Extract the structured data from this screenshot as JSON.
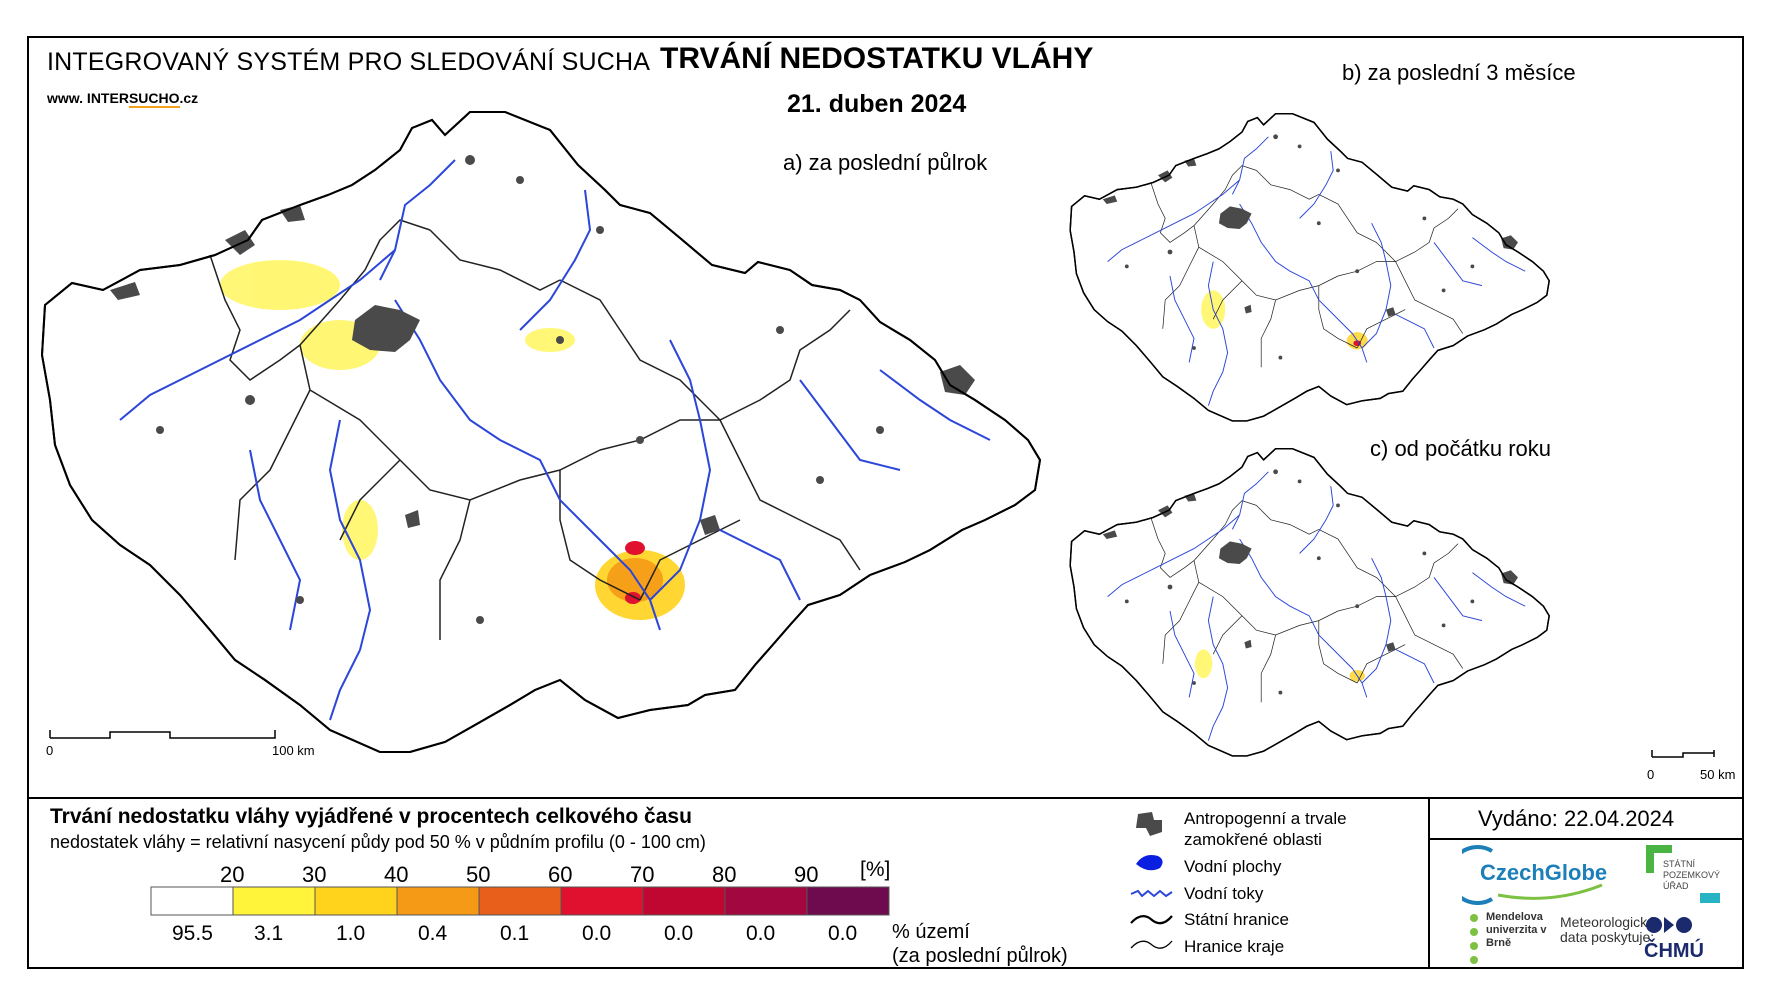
{
  "header": {
    "system_name": "INTEGROVANÝ SYSTÉM PRO SLEDOVÁNÍ SUCHA",
    "website_prefix": "www. INTER",
    "website_accent": "SUCHO",
    "website_suffix": ".cz",
    "title": "TRVÁNÍ NEDOSTATKU VLÁHY",
    "date": "21. duben 2024"
  },
  "maps": {
    "a_label": "a) za poslední půlrok",
    "b_label": "b) za poslední 3 měsíce",
    "c_label": "c) od počátku roku",
    "scale_main": {
      "start": "0",
      "end": "100 km"
    },
    "scale_small": {
      "start": "0",
      "end": "50 km"
    }
  },
  "legend": {
    "title": "Trvání nedostatku vláhy vyjádřené v procentech celkového času",
    "subtitle": "nedostatek vláhy = relativní nasycení půdy pod 50 % v půdním profilu (0 - 100 cm)",
    "thresholds": [
      "20",
      "30",
      "40",
      "50",
      "60",
      "70",
      "80",
      "90"
    ],
    "unit": "[%]",
    "colors": [
      "#ffffff",
      "#fff43a",
      "#ffd21c",
      "#f59a16",
      "#e85f1c",
      "#e0102f",
      "#bf0732",
      "#a3073f",
      "#6e0a4e"
    ],
    "percentages": [
      "95.5",
      "3.1",
      "1.0",
      "0.4",
      "0.1",
      "0.0",
      "0.0",
      "0.0",
      "0.0"
    ],
    "pct_caption_1": "% území",
    "pct_caption_2": "(za poslední půlrok)",
    "symbols": [
      {
        "icon": "urban-area-icon",
        "label": "Antropogenní a trvale zamokřené oblasti"
      },
      {
        "icon": "water-body-icon",
        "label": "Vodní plochy"
      },
      {
        "icon": "river-icon",
        "label": "Vodní toky"
      },
      {
        "icon": "state-border-icon",
        "label": "Státní hranice"
      },
      {
        "icon": "region-border-icon",
        "label": "Hranice kraje"
      }
    ]
  },
  "issued": "Vydáno: 22.04.2024",
  "logos": {
    "czechglobe": "CzechGlobe",
    "spu": "STÁTNÍ POZEMKOVÝ ÚŘAD",
    "mendel": "Mendelova univerzita v Brně",
    "meteo": "Meteorologická data poskytuje:",
    "chmu": "ČHMÚ"
  },
  "style": {
    "river_color": "#2b46d8",
    "urban_color": "#4a4a4a",
    "border_color": "#000000"
  }
}
